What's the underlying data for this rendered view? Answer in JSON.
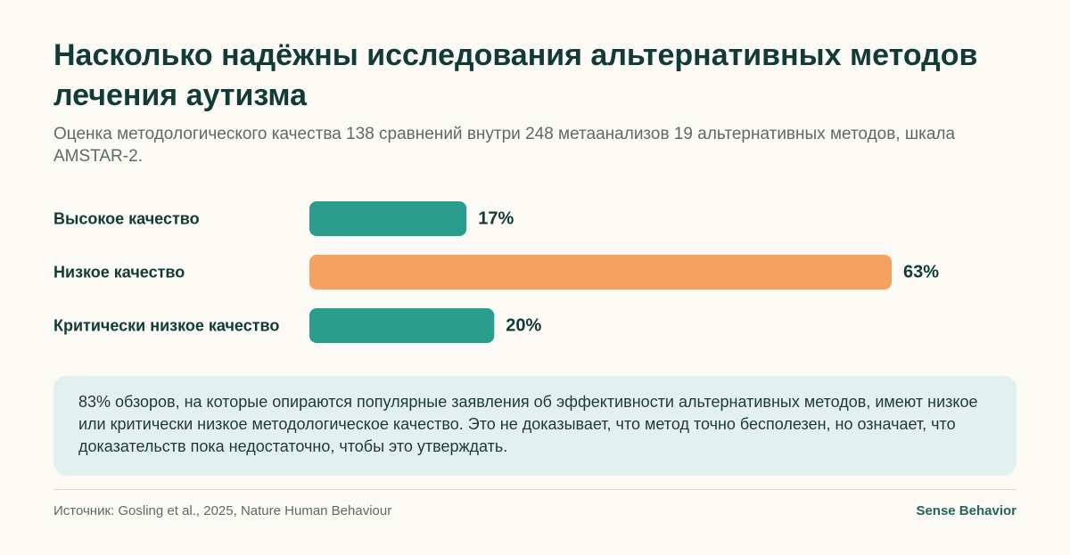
{
  "header": {
    "title": "Насколько надёжны исследования альтернативных методов лечения аутизма",
    "subtitle": "Оценка методологического качества 138 сравнений внутри 248 метаанализов 19 альтернативных методов, шкала AMSTAR-2."
  },
  "chart_data": {
    "type": "bar",
    "orientation": "horizontal",
    "categories": [
      "Высокое качество",
      "Низкое качество",
      "Критически низкое качество"
    ],
    "values": [
      17,
      63,
      20
    ],
    "value_labels": [
      "17%",
      "63%",
      "20%"
    ],
    "unit": "%",
    "xlim": [
      0,
      63
    ],
    "colors": [
      "#2a9d8f",
      "#f4a261",
      "#2a9d8f"
    ],
    "grid": false,
    "legend": "none"
  },
  "note": {
    "text": "83% обзоров, на которые опираются популярные заявления об эффективности альтернативных методов, имеют низкое или критически низкое методологическое качество. Это не доказывает, что метод точно бесполезен, но означает, что доказательств пока недостаточно, чтобы это утверждать."
  },
  "footer": {
    "source": "Источник: Gosling et al., 2025, Nature Human Behaviour",
    "brand": "Sense Behavior"
  },
  "colors": {
    "background": "#fbfaf5",
    "title": "#133b36",
    "note_background": "#e2f1ee",
    "brand": "#23645c"
  }
}
